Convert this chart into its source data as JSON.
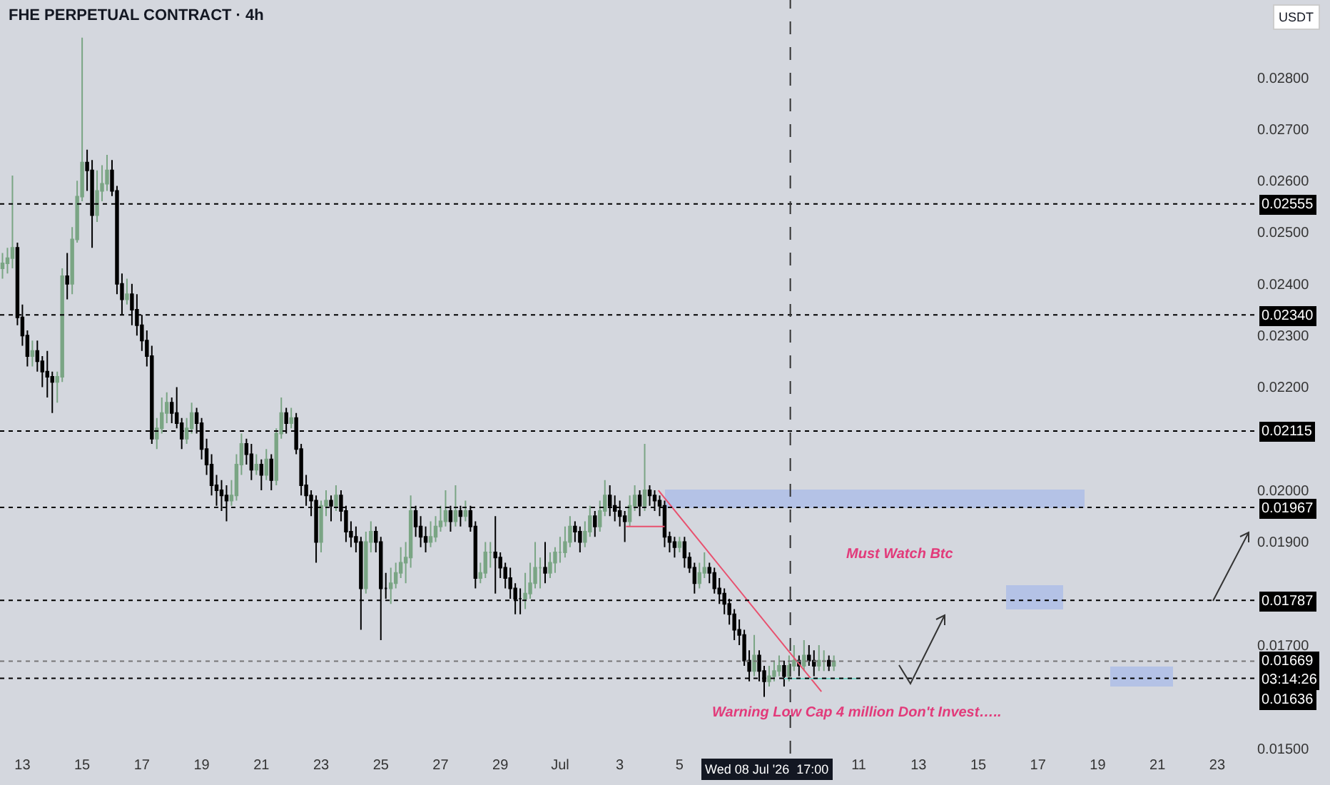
{
  "chart_data": {
    "type": "candlestick",
    "title": "FHE PERPETUAL CONTRACT · 4h",
    "ylabel": "USDT",
    "annotations": [
      "Must Watch Btc",
      "Warning Low Cap 4 million Don't Invest….."
    ],
    "x": [
      "2026-06-12T08:00",
      "2026-06-12T12:00",
      "2026-06-12T16:00",
      "2026-06-12T20:00",
      "2026-06-13T00:00",
      "2026-06-13T04:00",
      "2026-06-13T08:00",
      "2026-06-13T12:00",
      "2026-06-13T16:00",
      "2026-06-13T20:00",
      "2026-06-14T00:00",
      "2026-06-14T04:00",
      "2026-06-14T08:00",
      "2026-06-14T12:00",
      "2026-06-14T16:00",
      "2026-06-14T20:00",
      "2026-06-15T00:00",
      "2026-06-15T04:00",
      "2026-06-15T08:00",
      "2026-06-15T12:00",
      "2026-06-15T16:00",
      "2026-06-15T20:00",
      "2026-06-16T00:00",
      "2026-06-16T04:00",
      "2026-06-16T08:00",
      "2026-06-16T12:00",
      "2026-06-16T16:00",
      "2026-06-16T20:00",
      "2026-06-17T00:00",
      "2026-06-17T04:00",
      "2026-06-17T08:00",
      "2026-06-17T12:00",
      "2026-06-17T16:00",
      "2026-06-17T20:00",
      "2026-06-18T00:00",
      "2026-06-18T04:00",
      "2026-06-18T08:00",
      "2026-06-18T12:00",
      "2026-06-18T16:00",
      "2026-06-18T20:00",
      "2026-06-19T00:00",
      "2026-06-19T04:00",
      "2026-06-19T08:00",
      "2026-06-19T12:00",
      "2026-06-19T16:00",
      "2026-06-19T20:00",
      "2026-06-20T00:00",
      "2026-06-20T04:00",
      "2026-06-20T08:00",
      "2026-06-20T12:00",
      "2026-06-20T16:00",
      "2026-06-20T20:00",
      "2026-06-21T00:00",
      "2026-06-21T04:00",
      "2026-06-21T08:00",
      "2026-06-21T12:00",
      "2026-06-21T16:00",
      "2026-06-21T20:00",
      "2026-06-22T00:00",
      "2026-06-22T04:00",
      "2026-06-22T08:00",
      "2026-06-22T12:00",
      "2026-06-22T16:00",
      "2026-06-22T20:00",
      "2026-06-23T00:00",
      "2026-06-23T04:00",
      "2026-06-23T08:00",
      "2026-06-23T12:00",
      "2026-06-23T16:00",
      "2026-06-23T20:00",
      "2026-06-24T00:00",
      "2026-06-24T04:00",
      "2026-06-24T08:00",
      "2026-06-24T12:00",
      "2026-06-24T16:00",
      "2026-06-24T20:00",
      "2026-06-25T00:00",
      "2026-06-25T04:00",
      "2026-06-25T08:00",
      "2026-06-25T12:00",
      "2026-06-25T16:00",
      "2026-06-25T20:00",
      "2026-06-26T00:00",
      "2026-06-26T04:00",
      "2026-06-26T08:00",
      "2026-06-26T12:00",
      "2026-06-26T16:00",
      "2026-06-26T20:00",
      "2026-06-27T00:00",
      "2026-06-27T04:00",
      "2026-06-27T08:00",
      "2026-06-27T12:00",
      "2026-06-27T16:00",
      "2026-06-27T20:00",
      "2026-06-28T00:00",
      "2026-06-28T04:00",
      "2026-06-28T08:00",
      "2026-06-28T12:00",
      "2026-06-28T16:00",
      "2026-06-28T20:00",
      "2026-06-29T00:00",
      "2026-06-29T04:00",
      "2026-06-29T08:00",
      "2026-06-29T12:00",
      "2026-06-29T16:00",
      "2026-06-29T20:00",
      "2026-06-30T00:00",
      "2026-06-30T04:00",
      "2026-06-30T08:00",
      "2026-06-30T12:00",
      "2026-06-30T16:00",
      "2026-06-30T20:00",
      "2026-07-01T00:00",
      "2026-07-01T04:00",
      "2026-07-01T08:00",
      "2026-07-01T12:00",
      "2026-07-01T16:00",
      "2026-07-01T20:00",
      "2026-07-02T00:00",
      "2026-07-02T04:00",
      "2026-07-02T08:00",
      "2026-07-02T12:00",
      "2026-07-02T16:00",
      "2026-07-02T20:00",
      "2026-07-03T00:00",
      "2026-07-03T04:00",
      "2026-07-03T08:00",
      "2026-07-03T12:00",
      "2026-07-03T16:00",
      "2026-07-03T20:00",
      "2026-07-04T00:00",
      "2026-07-04T04:00",
      "2026-07-04T08:00",
      "2026-07-04T12:00",
      "2026-07-04T16:00",
      "2026-07-04T20:00",
      "2026-07-05T00:00",
      "2026-07-05T04:00",
      "2026-07-05T08:00",
      "2026-07-05T12:00",
      "2026-07-05T16:00",
      "2026-07-05T20:00",
      "2026-07-06T00:00",
      "2026-07-06T04:00",
      "2026-07-06T08:00",
      "2026-07-06T12:00",
      "2026-07-06T16:00",
      "2026-07-06T20:00",
      "2026-07-07T00:00",
      "2026-07-07T04:00",
      "2026-07-07T08:00",
      "2026-07-07T12:00",
      "2026-07-07T16:00",
      "2026-07-07T20:00",
      "2026-07-08T00:00",
      "2026-07-08T04:00",
      "2026-07-08T08:00",
      "2026-07-08T12:00",
      "2026-07-08T16:00",
      "2026-07-08T20:00",
      "2026-07-09T00:00",
      "2026-07-09T04:00",
      "2026-07-09T08:00",
      "2026-07-09T12:00",
      "2026-07-09T16:00",
      "2026-07-09T20:00",
      "2026-07-10T00:00",
      "2026-07-10T04:00"
    ],
    "series": [
      {
        "type": "line",
        "color": "#e8506e",
        "x": [
          "2026-07-04T07:00",
          "2026-07-09T18:00"
        ],
        "values": [
          0.02,
          0.0161
        ]
      },
      {
        "type": "line",
        "color": "#e8506e",
        "x": [
          "2026-07-03T05:00",
          "2026-07-04T12:00"
        ],
        "values": [
          0.0193,
          0.0193
        ]
      },
      {
        "type": "line",
        "color": "#7fd3c8",
        "x": [
          "2026-07-08T12:00",
          "2026-07-11T00:00"
        ],
        "values": [
          0.01635,
          0.01635
        ]
      },
      {
        "type": "candlestick",
        "colors": [
          "#7aa584",
          "#7aa584",
          "#7aa584",
          "#000000",
          "#000000",
          "#000000",
          "#7aa584",
          "#000000",
          "#000000",
          "#000000",
          "#000000",
          "#7aa584",
          "#7aa584",
          "#000000",
          "#7aa584",
          "#7aa584",
          "#7aa584",
          "#000000",
          "#000000",
          "#7aa584",
          "#7aa584",
          "#7aa584",
          "#000000",
          "#000000",
          "#000000",
          "#7aa584",
          "#000000",
          "#000000",
          "#000000",
          "#000000",
          "#000000",
          "#7aa584",
          "#7aa584",
          "#7aa584",
          "#000000",
          "#000000",
          "#000000",
          "#7aa584",
          "#7aa584",
          "#000000",
          "#000000",
          "#000000",
          "#000000",
          "#000000",
          "#000000",
          "#000000",
          "#7aa584",
          "#7aa584",
          "#7aa584",
          "#000000",
          "#000000",
          "#7aa584",
          "#000000",
          "#7aa584",
          "#000000",
          "#7aa584",
          "#7aa584",
          "#000000",
          "#7aa584",
          "#000000",
          "#000000",
          "#000000",
          "#000000",
          "#000000",
          "#7aa584",
          "#7aa584",
          "#000000",
          "#7aa584",
          "#000000",
          "#000000",
          "#000000",
          "#000000",
          "#000000",
          "#7aa584",
          "#7aa584",
          "#000000",
          "#000000",
          "#000000",
          "#7aa584",
          "#7aa584",
          "#7aa584",
          "#7aa584",
          "#7aa584",
          "#000000",
          "#000000",
          "#000000",
          "#7aa584",
          "#7aa584",
          "#7aa584",
          "#7aa584",
          "#000000",
          "#7aa584",
          "#000000",
          "#7aa584",
          "#000000",
          "#000000",
          "#7aa584",
          "#7aa584",
          "#7aa584",
          "#000000",
          "#000000",
          "#000000",
          "#000000",
          "#000000",
          "#000000",
          "#7aa584",
          "#7aa584",
          "#7aa584",
          "#7aa584",
          "#000000",
          "#7aa584",
          "#7aa584",
          "#7aa584",
          "#7aa584",
          "#7aa584",
          "#000000",
          "#000000",
          "#7aa584",
          "#7aa584",
          "#000000",
          "#7aa584",
          "#7aa584",
          "#000000",
          "#000000",
          "#000000",
          "#000000",
          "#7aa584",
          "#7aa584",
          "#000000",
          "#7aa584",
          "#000000",
          "#000000",
          "#000000",
          "#000000",
          "#000000",
          "#000000",
          "#7aa584",
          "#000000",
          "#000000",
          "#000000",
          "#7aa584",
          "#7aa584",
          "#000000",
          "#000000",
          "#000000",
          "#000000",
          "#000000",
          "#000000",
          "#000000",
          "#000000",
          "#000000",
          "#7aa584",
          "#000000",
          "#000000",
          "#7aa584",
          "#7aa584",
          "#7aa584",
          "#000000",
          "#7aa584",
          "#7aa584",
          "#000000",
          "#7aa584",
          "#000000",
          "#000000",
          "#7aa584",
          "#7aa584",
          "#000000",
          "#7aa584"
        ],
        "ohlc": [
          [
            0.0243,
            0.0246,
            0.0241,
            0.0244
          ],
          [
            0.0244,
            0.0247,
            0.0242,
            0.0245
          ],
          [
            0.0245,
            0.0261,
            0.0243,
            0.0247
          ],
          [
            0.0247,
            0.0248,
            0.0232,
            0.02335
          ],
          [
            0.02335,
            0.0236,
            0.0228,
            0.023
          ],
          [
            0.023,
            0.0231,
            0.0224,
            0.0226
          ],
          [
            0.0226,
            0.0229,
            0.0224,
            0.0227
          ],
          [
            0.0227,
            0.0229,
            0.0223,
            0.0225
          ],
          [
            0.0225,
            0.0226,
            0.022,
            0.0223
          ],
          [
            0.0223,
            0.0227,
            0.0218,
            0.0222
          ],
          [
            0.0222,
            0.0223,
            0.0215,
            0.0221
          ],
          [
            0.0221,
            0.0223,
            0.0217,
            0.0222
          ],
          [
            0.0222,
            0.0243,
            0.0221,
            0.02415
          ],
          [
            0.02415,
            0.0246,
            0.0237,
            0.024
          ],
          [
            0.024,
            0.0251,
            0.0238,
            0.02486
          ],
          [
            0.02486,
            0.026,
            0.0248,
            0.02569
          ],
          [
            0.02569,
            0.02877,
            0.0256,
            0.02635
          ],
          [
            0.02635,
            0.0266,
            0.0258,
            0.0262
          ],
          [
            0.0262,
            0.0264,
            0.0247,
            0.02533
          ],
          [
            0.02533,
            0.0262,
            0.0252,
            0.0258
          ],
          [
            0.0258,
            0.0263,
            0.0256,
            0.02594
          ],
          [
            0.02594,
            0.0265,
            0.0258,
            0.0262
          ],
          [
            0.0262,
            0.0264,
            0.0257,
            0.0258
          ],
          [
            0.0258,
            0.0259,
            0.0238,
            0.024
          ],
          [
            0.024,
            0.0242,
            0.0234,
            0.0237
          ],
          [
            0.0237,
            0.0241,
            0.0236,
            0.0238
          ],
          [
            0.0238,
            0.024,
            0.0232,
            0.0235
          ],
          [
            0.0235,
            0.0238,
            0.023,
            0.0232
          ],
          [
            0.0232,
            0.0234,
            0.0227,
            0.0229
          ],
          [
            0.0229,
            0.0231,
            0.0224,
            0.0226
          ],
          [
            0.0226,
            0.0228,
            0.0209,
            0.021
          ],
          [
            0.021,
            0.0214,
            0.0208,
            0.0212
          ],
          [
            0.0212,
            0.0218,
            0.0211,
            0.0215
          ],
          [
            0.0215,
            0.0219,
            0.0213,
            0.0217
          ],
          [
            0.0217,
            0.0218,
            0.0213,
            0.0215
          ],
          [
            0.0215,
            0.022,
            0.0212,
            0.0213
          ],
          [
            0.0213,
            0.0214,
            0.0208,
            0.021
          ],
          [
            0.021,
            0.0214,
            0.0209,
            0.0212
          ],
          [
            0.0212,
            0.0217,
            0.0211,
            0.0215
          ],
          [
            0.0215,
            0.0216,
            0.0211,
            0.0213
          ],
          [
            0.0213,
            0.0214,
            0.0206,
            0.0208
          ],
          [
            0.0208,
            0.021,
            0.0203,
            0.0205
          ],
          [
            0.0205,
            0.0207,
            0.0199,
            0.0201
          ],
          [
            0.0201,
            0.0203,
            0.0197,
            0.02
          ],
          [
            0.02,
            0.0202,
            0.0196,
            0.0199
          ],
          [
            0.0199,
            0.0201,
            0.0194,
            0.0198
          ],
          [
            0.0198,
            0.0202,
            0.0197,
            0.0199
          ],
          [
            0.0199,
            0.0207,
            0.0198,
            0.0205
          ],
          [
            0.0205,
            0.0211,
            0.0203,
            0.0209
          ],
          [
            0.0209,
            0.021,
            0.0205,
            0.0207
          ],
          [
            0.0207,
            0.0209,
            0.0202,
            0.0204
          ],
          [
            0.0204,
            0.0207,
            0.0203,
            0.0205
          ],
          [
            0.0205,
            0.0206,
            0.02,
            0.0203
          ],
          [
            0.0203,
            0.0208,
            0.0202,
            0.0206
          ],
          [
            0.0206,
            0.0207,
            0.02,
            0.0202
          ],
          [
            0.0202,
            0.0212,
            0.0201,
            0.0211
          ],
          [
            0.0211,
            0.0218,
            0.021,
            0.0215
          ],
          [
            0.0215,
            0.0216,
            0.0211,
            0.0213
          ],
          [
            0.0213,
            0.0216,
            0.0212,
            0.0214
          ],
          [
            0.0214,
            0.0215,
            0.0207,
            0.0208
          ],
          [
            0.0208,
            0.0209,
            0.0199,
            0.0201
          ],
          [
            0.0201,
            0.0203,
            0.0197,
            0.0199
          ],
          [
            0.0199,
            0.02,
            0.0195,
            0.0198
          ],
          [
            0.0198,
            0.0199,
            0.0186,
            0.019
          ],
          [
            0.019,
            0.0198,
            0.0188,
            0.0197
          ],
          [
            0.0197,
            0.02,
            0.0195,
            0.0198
          ],
          [
            0.0198,
            0.0199,
            0.0194,
            0.0197
          ],
          [
            0.0197,
            0.0201,
            0.0196,
            0.0199
          ],
          [
            0.0199,
            0.02,
            0.0194,
            0.0196
          ],
          [
            0.0196,
            0.0197,
            0.019,
            0.0192
          ],
          [
            0.0192,
            0.0194,
            0.0189,
            0.0191
          ],
          [
            0.0191,
            0.0193,
            0.0188,
            0.019
          ],
          [
            0.019,
            0.0191,
            0.0173,
            0.0181
          ],
          [
            0.0181,
            0.0192,
            0.018,
            0.019
          ],
          [
            0.019,
            0.0194,
            0.0188,
            0.0192
          ],
          [
            0.0192,
            0.0193,
            0.0188,
            0.019
          ],
          [
            0.019,
            0.0191,
            0.0171,
            0.0181
          ],
          [
            0.0181,
            0.0184,
            0.0179,
            0.0181
          ],
          [
            0.0181,
            0.0185,
            0.0178,
            0.0182
          ],
          [
            0.0182,
            0.0186,
            0.0181,
            0.0184
          ],
          [
            0.0184,
            0.0189,
            0.0183,
            0.0186
          ],
          [
            0.0186,
            0.019,
            0.0182,
            0.0187
          ],
          [
            0.0187,
            0.0199,
            0.0185,
            0.0196
          ],
          [
            0.0196,
            0.0197,
            0.0191,
            0.0193
          ],
          [
            0.0193,
            0.0195,
            0.0189,
            0.0191
          ],
          [
            0.0191,
            0.0193,
            0.0188,
            0.019
          ],
          [
            0.019,
            0.0194,
            0.0189,
            0.0191
          ],
          [
            0.0191,
            0.0195,
            0.019,
            0.0193
          ],
          [
            0.0193,
            0.0197,
            0.0192,
            0.0194
          ],
          [
            0.0194,
            0.02,
            0.0193,
            0.0196
          ],
          [
            0.0196,
            0.0197,
            0.0192,
            0.0194
          ],
          [
            0.0194,
            0.0201,
            0.0193,
            0.0196
          ],
          [
            0.0196,
            0.0197,
            0.0193,
            0.0195
          ],
          [
            0.0195,
            0.0198,
            0.0194,
            0.0196
          ],
          [
            0.0196,
            0.0197,
            0.0192,
            0.0193
          ],
          [
            0.0193,
            0.0194,
            0.0181,
            0.0183
          ],
          [
            0.0183,
            0.0186,
            0.0182,
            0.0184
          ],
          [
            0.0184,
            0.019,
            0.0183,
            0.0188
          ],
          [
            0.0188,
            0.019,
            0.0185,
            0.0188
          ],
          [
            0.0188,
            0.0195,
            0.018,
            0.0187
          ],
          [
            0.0187,
            0.0188,
            0.0183,
            0.0185
          ],
          [
            0.0185,
            0.0186,
            0.0181,
            0.0183
          ],
          [
            0.0183,
            0.0185,
            0.0179,
            0.0181
          ],
          [
            0.0181,
            0.0182,
            0.0176,
            0.0179
          ],
          [
            0.0179,
            0.0181,
            0.0176,
            0.0179
          ],
          [
            0.0179,
            0.0184,
            0.0177,
            0.018
          ],
          [
            0.018,
            0.0186,
            0.0179,
            0.0182
          ],
          [
            0.0182,
            0.019,
            0.0181,
            0.0185
          ],
          [
            0.0185,
            0.0187,
            0.0181,
            0.0185
          ],
          [
            0.0185,
            0.019,
            0.0182,
            0.0184
          ],
          [
            0.0184,
            0.0188,
            0.0183,
            0.0186
          ],
          [
            0.0186,
            0.0189,
            0.0184,
            0.0188
          ],
          [
            0.0188,
            0.0191,
            0.0186,
            0.0188
          ],
          [
            0.0188,
            0.0193,
            0.0187,
            0.019
          ],
          [
            0.019,
            0.0195,
            0.0189,
            0.0193
          ],
          [
            0.0193,
            0.0194,
            0.019,
            0.0192
          ],
          [
            0.0192,
            0.0193,
            0.0188,
            0.019
          ],
          [
            0.019,
            0.0194,
            0.0189,
            0.0192
          ],
          [
            0.0192,
            0.0197,
            0.0191,
            0.0195
          ],
          [
            0.0195,
            0.0196,
            0.0191,
            0.0193
          ],
          [
            0.0193,
            0.0198,
            0.0192,
            0.0196
          ],
          [
            0.0196,
            0.0202,
            0.0195,
            0.0199
          ],
          [
            0.0199,
            0.0201,
            0.0195,
            0.0197
          ],
          [
            0.0197,
            0.0199,
            0.0194,
            0.0196
          ],
          [
            0.0196,
            0.0198,
            0.0193,
            0.0195
          ],
          [
            0.0195,
            0.0196,
            0.019,
            0.0194
          ],
          [
            0.0194,
            0.0199,
            0.0193,
            0.0197
          ],
          [
            0.0197,
            0.0201,
            0.0196,
            0.0199
          ],
          [
            0.0199,
            0.02,
            0.0195,
            0.0197
          ],
          [
            0.0197,
            0.0209,
            0.0196,
            0.02
          ],
          [
            0.02,
            0.0201,
            0.0197,
            0.0199
          ],
          [
            0.0199,
            0.02,
            0.0196,
            0.0198
          ],
          [
            0.0198,
            0.0199,
            0.0195,
            0.0197
          ],
          [
            0.0197,
            0.0198,
            0.0189,
            0.0191
          ],
          [
            0.0191,
            0.0192,
            0.0188,
            0.019
          ],
          [
            0.019,
            0.0191,
            0.0187,
            0.0189
          ],
          [
            0.0189,
            0.0191,
            0.0188,
            0.019
          ],
          [
            0.019,
            0.0191,
            0.0185,
            0.0187
          ],
          [
            0.0187,
            0.0188,
            0.0184,
            0.0185
          ],
          [
            0.0185,
            0.0186,
            0.018,
            0.0182
          ],
          [
            0.0182,
            0.0186,
            0.0181,
            0.0184
          ],
          [
            0.0184,
            0.0188,
            0.0183,
            0.0185
          ],
          [
            0.0185,
            0.0186,
            0.0182,
            0.0184
          ],
          [
            0.0184,
            0.0185,
            0.018,
            0.0181
          ],
          [
            0.0181,
            0.0183,
            0.0178,
            0.018
          ],
          [
            0.018,
            0.0181,
            0.0176,
            0.0178
          ],
          [
            0.0178,
            0.0179,
            0.0174,
            0.0176
          ],
          [
            0.0176,
            0.0177,
            0.0171,
            0.0173
          ],
          [
            0.0173,
            0.0175,
            0.017,
            0.0172
          ],
          [
            0.0172,
            0.0173,
            0.0166,
            0.0167
          ],
          [
            0.0167,
            0.0169,
            0.0163,
            0.0165
          ],
          [
            0.0165,
            0.0172,
            0.0164,
            0.0168
          ],
          [
            0.0168,
            0.0169,
            0.0163,
            0.0165
          ],
          [
            0.0165,
            0.0166,
            0.016,
            0.0163
          ],
          [
            0.0163,
            0.0166,
            0.0162,
            0.0164
          ],
          [
            0.0164,
            0.0167,
            0.0163,
            0.0165
          ],
          [
            0.0165,
            0.0168,
            0.0164,
            0.0166
          ],
          [
            0.0166,
            0.0167,
            0.0162,
            0.0164
          ],
          [
            0.0164,
            0.0168,
            0.0163,
            0.0166
          ],
          [
            0.0166,
            0.017,
            0.0165,
            0.0167
          ],
          [
            0.0167,
            0.0168,
            0.0164,
            0.0166
          ],
          [
            0.0166,
            0.0171,
            0.0165,
            0.0168
          ],
          [
            0.0168,
            0.017,
            0.0166,
            0.0167
          ],
          [
            0.0167,
            0.0169,
            0.0164,
            0.0166
          ],
          [
            0.0166,
            0.017,
            0.0165,
            0.0167
          ],
          [
            0.0167,
            0.0169,
            0.0165,
            0.0167
          ],
          [
            0.0167,
            0.0168,
            0.0165,
            0.0166
          ],
          [
            0.0166,
            0.0168,
            0.0165,
            0.01669
          ]
        ]
      }
    ],
    "ref_lines": [
      {
        "axis": "y",
        "value": 0.02555,
        "label": "0.02555",
        "color": "#000000",
        "line_style": "dotted"
      },
      {
        "axis": "y",
        "value": 0.0234,
        "label": "0.02340",
        "color": "#000000",
        "line_style": "dotted"
      },
      {
        "axis": "y",
        "value": 0.02115,
        "label": "0.02115",
        "color": "#000000",
        "line_style": "dotted"
      },
      {
        "axis": "y",
        "value": 0.01967,
        "label": "0.01967",
        "color": "#000000",
        "line_style": "dotted"
      },
      {
        "axis": "y",
        "value": 0.01787,
        "label": "0.01787",
        "color": "#000000",
        "line_style": "dotted"
      },
      {
        "axis": "y",
        "value": 0.01669,
        "label": "0.01669\n03:14:26",
        "color": "#777777",
        "line_style": "dotted"
      },
      {
        "axis": "y",
        "value": 0.01636,
        "label": "0.01636",
        "color": "#000000",
        "line_style": "dotted"
      },
      {
        "axis": "x",
        "value": "2026-07-08T17:00",
        "label": "Wed 08 Jul '26  17:00",
        "color": "#333333",
        "line_style": "dashed"
      }
    ],
    "xlim": [
      "2026-06-12T06:00",
      "2026-07-24T07:00"
    ],
    "xticks": [
      {
        "value": "2026-06-13",
        "label": "13"
      },
      {
        "value": "2026-06-15",
        "label": "15"
      },
      {
        "value": "2026-06-17",
        "label": "17"
      },
      {
        "value": "2026-06-19",
        "label": "19"
      },
      {
        "value": "2026-06-21",
        "label": "21"
      },
      {
        "value": "2026-06-23",
        "label": "23"
      },
      {
        "value": "2026-06-25",
        "label": "25"
      },
      {
        "value": "2026-06-27",
        "label": "27"
      },
      {
        "value": "2026-06-29",
        "label": "29"
      },
      {
        "value": "2026-07-01",
        "label": "Jul"
      },
      {
        "value": "2026-07-03",
        "label": "3"
      },
      {
        "value": "2026-07-05",
        "label": "5"
      },
      {
        "value": "2026-07-11",
        "label": "11"
      },
      {
        "value": "2026-07-13",
        "label": "13"
      },
      {
        "value": "2026-07-15",
        "label": "15"
      },
      {
        "value": "2026-07-17",
        "label": "17"
      },
      {
        "value": "2026-07-19",
        "label": "19"
      },
      {
        "value": "2026-07-21",
        "label": "21"
      },
      {
        "value": "2026-07-23",
        "label": "23"
      }
    ],
    "ylim": [
      0.0149,
      0.0295
    ],
    "yticks": [
      {
        "value": 0.015,
        "label": "0.01500"
      },
      {
        "value": 0.017,
        "label": "0.01700"
      },
      {
        "value": 0.019,
        "label": "0.01900"
      },
      {
        "value": 0.02,
        "label": "0.02000"
      },
      {
        "value": 0.022,
        "label": "0.02200"
      },
      {
        "value": 0.023,
        "label": "0.02300"
      },
      {
        "value": 0.024,
        "label": "0.02400"
      },
      {
        "value": 0.025,
        "label": "0.02500"
      },
      {
        "value": 0.026,
        "label": "0.02600"
      },
      {
        "value": 0.027,
        "label": "0.02700"
      },
      {
        "value": 0.028,
        "label": "0.02800"
      }
    ],
    "grid": false
  }
}
